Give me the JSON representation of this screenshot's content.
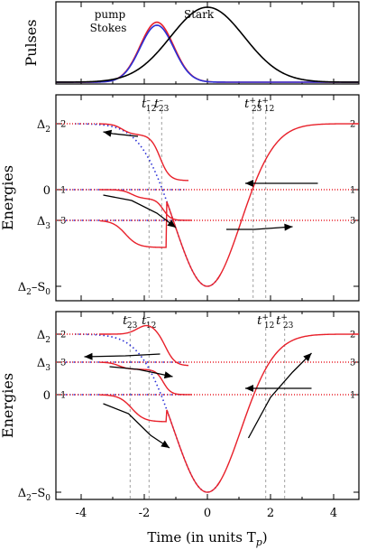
{
  "chart_data": {
    "type": "line",
    "x_axis": {
      "label": "Time (in units T",
      "label_subscript": "p",
      "label_close": ")",
      "ticks": [
        -4,
        -2,
        0,
        2,
        4
      ],
      "tick_labels": [
        "-4",
        "-2",
        "0",
        "2",
        "4"
      ],
      "xlim": [
        -4.8,
        4.8
      ]
    },
    "colors": {
      "pump": "#e8202a",
      "stokes": "#2a2fd6",
      "stark": "#000000",
      "diabatic": "#2a2fd6",
      "adiabatic": "#e8202a",
      "arrow": "#000000"
    },
    "panels": [
      {
        "id": "pulses",
        "ylabel": "Pulses",
        "legend": [
          {
            "name": "pump",
            "color": "#e8202a"
          },
          {
            "name": "Stokes",
            "color": "#2a2fd6"
          }
        ],
        "annotation": "Stark",
        "series": [
          {
            "name": "pump",
            "center": -1.6,
            "width": 0.75,
            "amplitude": 0.8
          },
          {
            "name": "Stokes",
            "center": -1.6,
            "width": 0.75,
            "amplitude": 0.76
          },
          {
            "name": "Stark",
            "center": 0.0,
            "width": 1.65,
            "amplitude": 1.0
          }
        ]
      },
      {
        "id": "energies-1",
        "ylabel": "Energies",
        "ytick_labels": [
          {
            "text": "Δ",
            "sub": "2",
            "level": "D2"
          },
          {
            "text": "0",
            "sub": "",
            "level": "Z"
          },
          {
            "text": "Δ",
            "sub": "3",
            "level": "D3"
          },
          {
            "text": "Δ",
            "sub": "2",
            "suffix": "–S",
            "sub2": "0",
            "level": "B"
          }
        ],
        "level_labels": [
          {
            "text": "2",
            "level": "D2"
          },
          {
            "text": "1",
            "level": "Z"
          },
          {
            "text": "3",
            "level": "D3"
          }
        ],
        "crossing_labels": [
          {
            "base": "t",
            "sup": "–",
            "sub": "12",
            "x": -1.85
          },
          {
            "base": "t",
            "sup": "–",
            "sub": "23",
            "x": -1.45
          },
          {
            "base": "t",
            "sup": "+",
            "sub": "23",
            "x": 1.45
          },
          {
            "base": "t",
            "sup": "+",
            "sub": "12",
            "x": 1.85
          }
        ]
      },
      {
        "id": "energies-2",
        "ylabel": "Energies",
        "ytick_labels": [
          {
            "text": "Δ",
            "sub": "2",
            "level": "D2"
          },
          {
            "text": "Δ",
            "sub": "3",
            "level": "D3"
          },
          {
            "text": "0",
            "sub": "",
            "level": "Z"
          },
          {
            "text": "Δ",
            "sub": "2",
            "suffix": "–S",
            "sub2": "0",
            "level": "B"
          }
        ],
        "level_labels": [
          {
            "text": "2",
            "level": "D2"
          },
          {
            "text": "3",
            "level": "D3"
          },
          {
            "text": "1",
            "level": "Z"
          }
        ],
        "crossing_labels": [
          {
            "base": "t",
            "sup": "–",
            "sub": "23",
            "x": -2.45
          },
          {
            "base": "t",
            "sup": "–",
            "sub": "12",
            "x": -1.85
          },
          {
            "base": "t",
            "sup": "+",
            "sub": "12",
            "x": 1.85
          },
          {
            "base": "t",
            "sup": "+",
            "sub": "23",
            "x": 2.45
          }
        ]
      }
    ]
  }
}
